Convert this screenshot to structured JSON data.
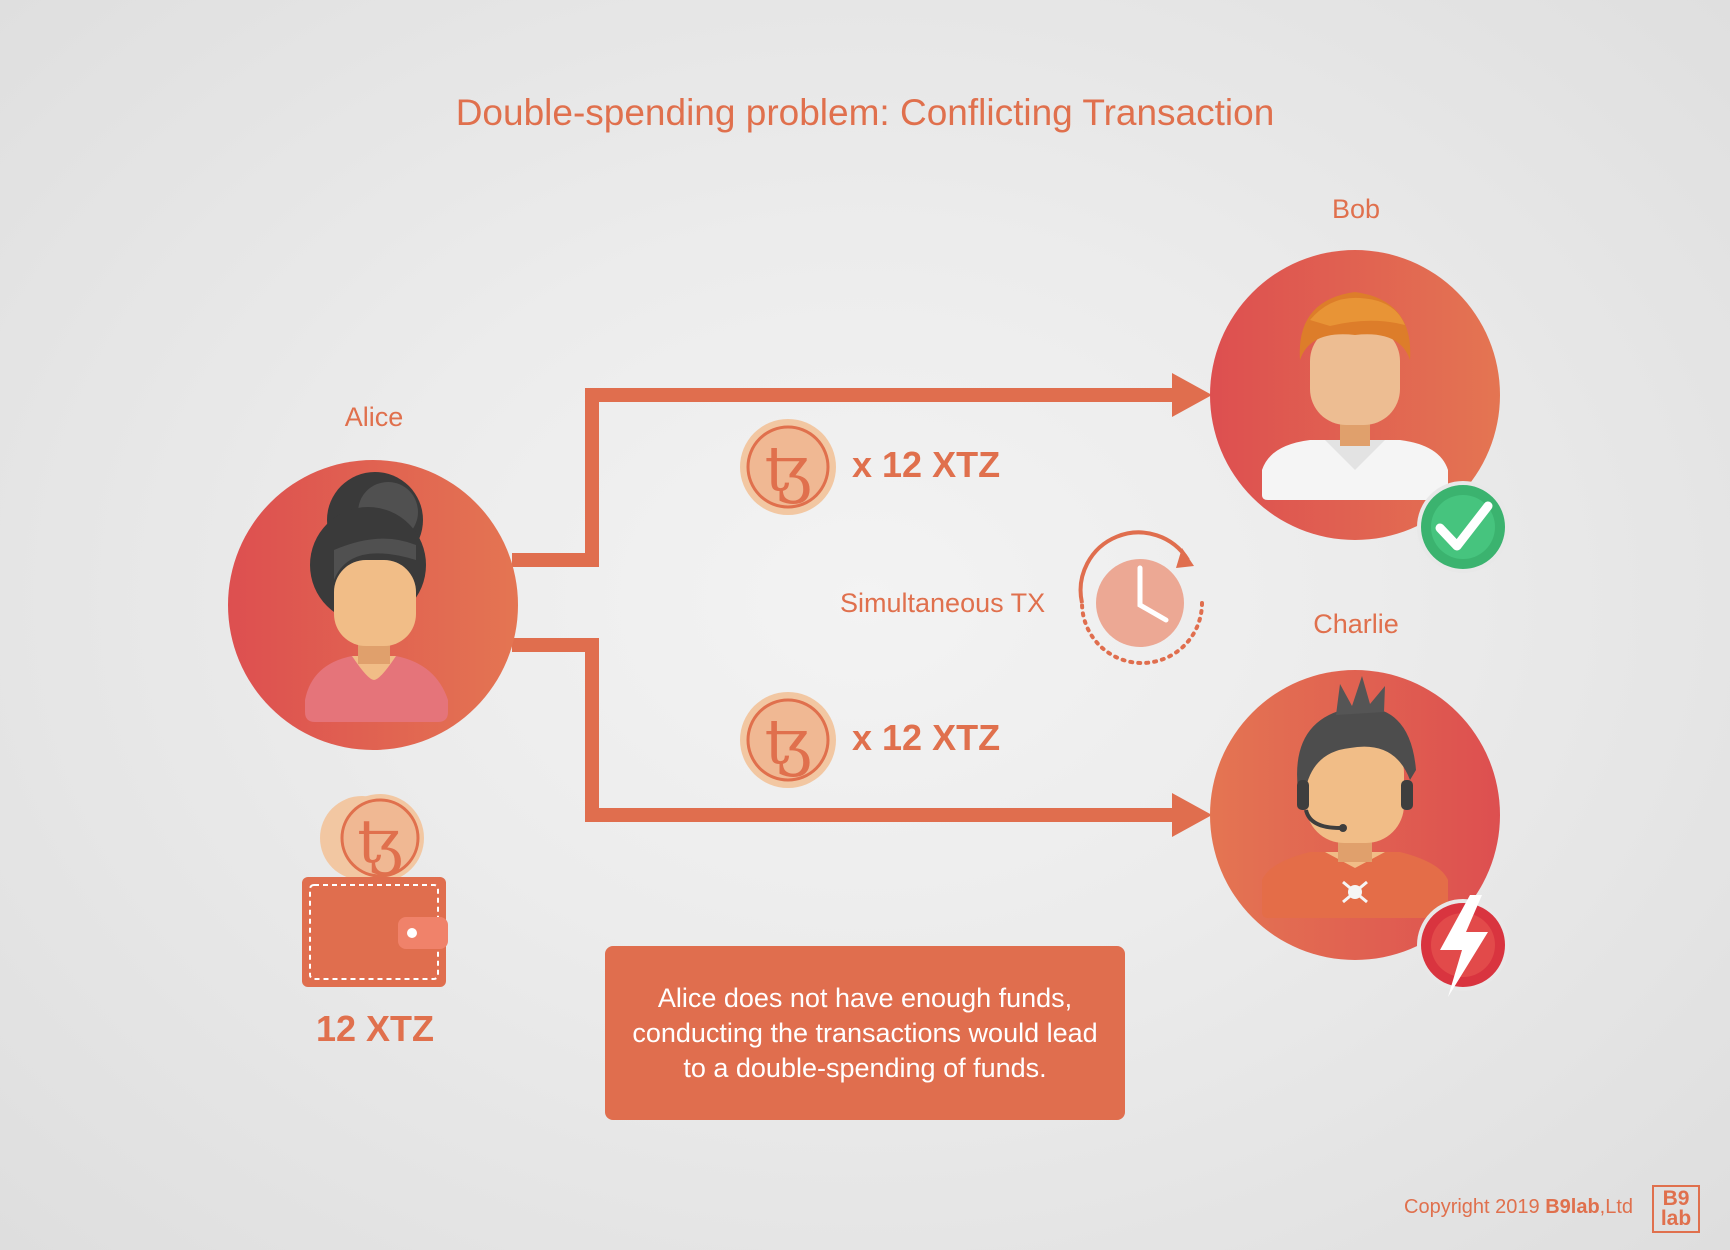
{
  "title": "Double-spending problem: Conflicting Transaction",
  "people": {
    "alice": "Alice",
    "bob": "Bob",
    "charlie": "Charlie"
  },
  "wallet": {
    "balance": "12 XTZ"
  },
  "transactions": {
    "to_bob": "x 12 XTZ",
    "to_charlie": "x 12 XTZ",
    "simultaneous_label": "Simultaneous TX"
  },
  "note": "Alice does not have enough funds, conducting the transactions would lead to a double-spending of funds.",
  "footer": {
    "copyright_prefix": "Copyright 2019 ",
    "company": "B9lab",
    "company_suffix": ",Ltd",
    "logo_line1": "B9",
    "logo_line2": "lab"
  },
  "icons": {
    "coin": "tezos-coin-icon",
    "clock": "clock-icon",
    "success": "check-icon",
    "failure": "lightning-icon",
    "wallet": "wallet-icon"
  },
  "colors": {
    "accent": "#e0704d",
    "arrow": "#e06e4e",
    "success": "#3bb36f",
    "failure": "#d9343f"
  }
}
